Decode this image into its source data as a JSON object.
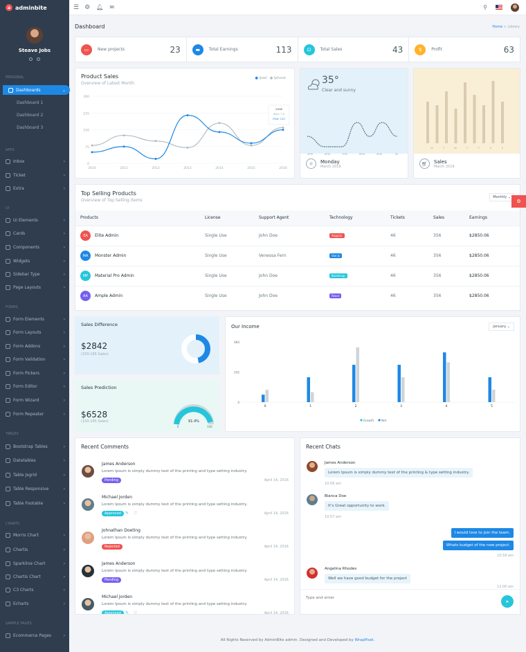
{
  "brand": "adminbite",
  "user": "Steave Jobs",
  "sidebar": {
    "sections": {
      "personal": "PERSONAL",
      "apps": "APPS",
      "ui": "UI",
      "forms": "FORMS",
      "tables": "TABLES",
      "charts": "CHARTS",
      "sample_pages": "SAMPLE PAGES"
    },
    "items": [
      "Dashboards",
      "Dashboard 1",
      "Dashboard 2",
      "Dashboard 3",
      "Inbox",
      "Ticket",
      "Extra",
      "Ui Elements",
      "Cards",
      "Components",
      "Widgets",
      "Sidebar Type",
      "Page Layouts",
      "Form Elements",
      "Form Layouts",
      "Form Addons",
      "Form Validation",
      "Form Pickers",
      "Form Editor",
      "Form Wizard",
      "Form Repeater",
      "Bootstrap Tables",
      "Datatables",
      "Table Jsgrid",
      "Table Responsive",
      "Table Footable",
      "Morris Chart",
      "Chartis",
      "Sparkline Chart",
      "Chartis Chart",
      "C3 Charts",
      "Echarts",
      "Ecommerce Pages"
    ]
  },
  "page": {
    "title": "Dashboard",
    "breadcrumb_home": "Home",
    "breadcrumb_current": "Library"
  },
  "stats": [
    {
      "label": "New projects",
      "value": "23",
      "color": "#ef5350",
      "icon": "briefcase-icon"
    },
    {
      "label": "Total Earnings",
      "value": "113",
      "color": "#1e88e5",
      "icon": "card-icon"
    },
    {
      "label": "Total Sales",
      "value": "43",
      "color": "#26c6da",
      "icon": "cart-icon"
    },
    {
      "label": "Profit",
      "value": "63",
      "color": "#ffb22b",
      "icon": "dollar-icon"
    }
  ],
  "product_sales": {
    "title": "Product Sales",
    "subtitle": "Overview of Latest Month",
    "legend": [
      "Ipad",
      "Iphone"
    ],
    "tooltip": {
      "year": "2016",
      "a": "iPad: 7.0",
      "b": "iPad: 120",
      "c": "iPad: 150"
    }
  },
  "chart_data": [
    {
      "type": "line",
      "title": "Product Sales",
      "x": [
        "2010",
        "2011",
        "2012",
        "2013",
        "2014",
        "2015",
        "2016"
      ],
      "ylim": [
        0,
        300
      ],
      "yticks": [
        "0",
        "75",
        "150",
        "225",
        "300"
      ],
      "series": [
        {
          "name": "Ipad",
          "values": [
            50,
            75,
            20,
            215,
            140,
            90,
            150
          ]
        },
        {
          "name": "Iphone",
          "values": [
            80,
            125,
            100,
            70,
            180,
            80,
            160
          ]
        }
      ]
    },
    {
      "type": "bar",
      "title": "Our Income",
      "x": [
        "0",
        "1",
        "2",
        "3",
        "4",
        "5"
      ],
      "yticks": [
        "0",
        "242",
        "484"
      ],
      "ylim": [
        0,
        484
      ],
      "series": [
        {
          "name": "Growth",
          "values": [
            60,
            200,
            300,
            300,
            400,
            200
          ]
        },
        {
          "name": "Net",
          "values": [
            100,
            80,
            440,
            200,
            320,
            100
          ]
        }
      ]
    }
  ],
  "weather": {
    "temp": "35",
    "unit": "°",
    "desc": "Clear and sunny",
    "labels": [
      "5PM",
      "6PM",
      "7PM",
      "8PM",
      "9PM",
      "5P"
    ],
    "day": "Monday",
    "date": "March 2019"
  },
  "sales_card": {
    "title": "Sales",
    "date": "March 2019",
    "labels": [
      "M",
      "T",
      "W",
      "T",
      "F",
      "S",
      "S"
    ]
  },
  "top_products": {
    "title": "Top Selling Products",
    "subtitle": "Overview of Top Selling Items",
    "filter": "Monthly",
    "columns": [
      "Products",
      "License",
      "Support Agent",
      "Technology",
      "Tickets",
      "Sales",
      "Earnings"
    ],
    "rows": [
      {
        "init": "EA",
        "color": "#ef5350",
        "name": "Elite Admin",
        "license": "Single Use",
        "agent": "John Doe",
        "tech": "Angular",
        "tech_color": "#ef5350",
        "tickets": "46",
        "sales": "356",
        "earn": "$2850.06"
      },
      {
        "init": "MA",
        "color": "#1e88e5",
        "name": "Monster Admin",
        "license": "Single Use",
        "agent": "Venessa Fern",
        "tech": "Vue Js",
        "tech_color": "#1e88e5",
        "tickets": "46",
        "sales": "356",
        "earn": "$2850.06"
      },
      {
        "init": "MP",
        "color": "#26c6da",
        "name": "Material Pro Admin",
        "license": "Single Use",
        "agent": "John Doe",
        "tech": "Bootstrap",
        "tech_color": "#26c6da",
        "tickets": "46",
        "sales": "356",
        "earn": "$2850.06"
      },
      {
        "init": "AA",
        "color": "#7460ee",
        "name": "Ample Admin",
        "license": "Single Use",
        "agent": "John Doe",
        "tech": "React",
        "tech_color": "#7460ee",
        "tickets": "46",
        "sales": "356",
        "earn": "$2850.06"
      }
    ]
  },
  "sales_diff": {
    "title": "Sales Difference",
    "value": "$2842",
    "note": "(150-165 Sales)"
  },
  "sales_pred": {
    "title": "Sales Prediction",
    "value": "$6528",
    "note": "(150-165 Sales)",
    "gauge": "91.4%",
    "min": "0",
    "max": "100"
  },
  "income": {
    "title": "Our Income",
    "filter": "January",
    "legend": [
      "Growth",
      "Net"
    ]
  },
  "comments": {
    "title": "Recent Comments",
    "items": [
      {
        "name": "James Anderson",
        "text": "Lorem Ipsum is simply dummy text of the printing and type setting industry.",
        "badge": "Pending",
        "color": "#7460ee",
        "date": "April 14, 2016"
      },
      {
        "name": "Michael Jorden",
        "text": "Lorem Ipsum is simply dummy text of the printing and type setting industry.",
        "badge": "Approved",
        "color": "#26c6da",
        "date": "April 14, 2016"
      },
      {
        "name": "Johnathan Doeting",
        "text": "Lorem Ipsum is simply dummy text of the printing and type setting industry.",
        "badge": "Rejected",
        "color": "#ef5350",
        "date": "April 14, 2016"
      },
      {
        "name": "James Anderson",
        "text": "Lorem Ipsum is simply dummy text of the printing and type setting industry.",
        "badge": "Pending",
        "color": "#7460ee",
        "date": "April 14, 2016"
      },
      {
        "name": "Michael Jorden",
        "text": "Lorem Ipsum is simply dummy text of the printing and type setting industry.",
        "badge": "Approved",
        "color": "#26c6da",
        "date": "April 14, 2016"
      }
    ]
  },
  "chats": {
    "title": "Recent Chats",
    "input_placeholder": "Type and enter",
    "items": [
      {
        "name": "James Anderson",
        "text": "Lorem Ipsum is simply dummy text of the printing & type setting industry.",
        "time": "10:56 am"
      },
      {
        "name": "Bianca Doe",
        "text": "It’s Great opportunity to work.",
        "time": "10:57 am"
      },
      {
        "out1": "I would love to join the team.",
        "out2": "Whats budget of the new project.",
        "time": "10:59 am"
      },
      {
        "name": "Angelina Rhodes",
        "text": "Well we have good budget for the project",
        "time": "11:00 am"
      }
    ]
  },
  "footer": {
    "text": "All Rights Reserved by AdminBite admin. Designed and Developed by ",
    "link": "WrapPixel."
  }
}
